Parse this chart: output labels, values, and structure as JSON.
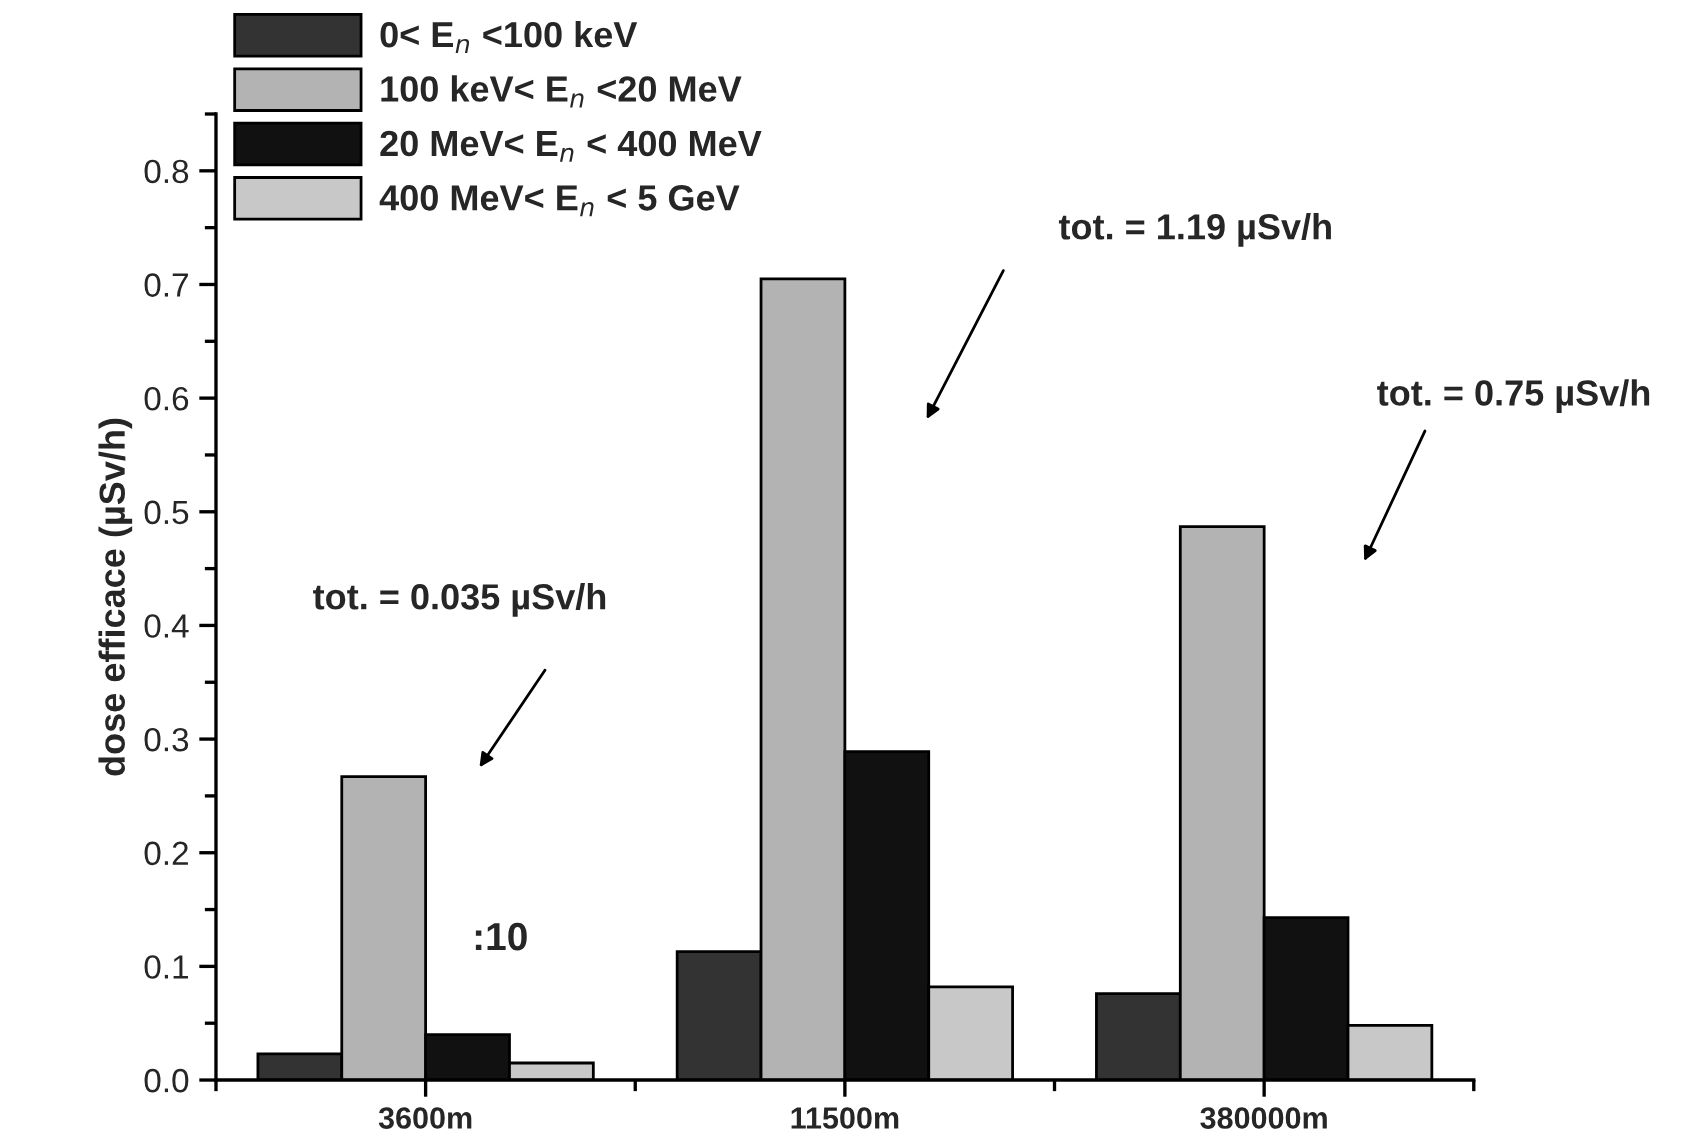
{
  "chart_data": {
    "type": "bar",
    "ylabel": "dose efficace (µSv/h)",
    "categories": [
      "3600m",
      "11500m",
      "380000m"
    ],
    "series": [
      {
        "name": "0< E$_{n}$ <100 keV",
        "color": "#333333",
        "values": [
          0.023,
          0.113,
          0.076
        ]
      },
      {
        "name": "100 keV< E$_{n}$ <20 MeV",
        "color": "#b3b3b3",
        "values": [
          0.267,
          0.705,
          0.487
        ]
      },
      {
        "name": "20 MeV< E$_{n}$ < 400 MeV",
        "color": "#111111",
        "values": [
          0.04,
          0.289,
          0.143
        ]
      },
      {
        "name": "400 MeV< E$_{n}$ < 5 GeV",
        "color": "#c8c8c8",
        "values": [
          0.015,
          0.082,
          0.048
        ]
      }
    ],
    "ylim": [
      0,
      0.85
    ],
    "yticks": [
      {
        "value": 0,
        "label": "0.0"
      },
      0.1,
      0.2,
      0.3,
      0.4,
      0.5,
      0.6,
      0.7,
      0.8
    ],
    "annotations": [
      "tot. = 0.035 µSv/h",
      "tot. = 1.19 µSv/h",
      "tot. = 0.75 µSv/h",
      ":10"
    ],
    "legend": "top left",
    "grid": false
  }
}
